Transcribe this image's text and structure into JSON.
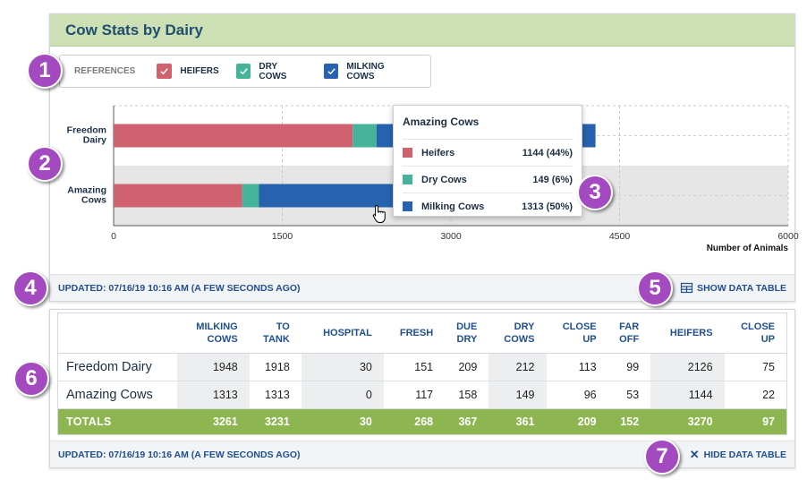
{
  "card": {
    "title": "Cow Stats by Dairy"
  },
  "legend": {
    "title": "REFERENCES",
    "items": [
      {
        "label": "HEIFERS",
        "color": "#d0626f"
      },
      {
        "label": "DRY COWS",
        "color": "#45b39a"
      },
      {
        "label": "MILKING COWS",
        "color": "#2662ad"
      }
    ]
  },
  "chart_data": {
    "type": "bar",
    "orientation": "horizontal",
    "stacked": true,
    "categories": [
      "Freedom Dairy",
      "Amazing Cows"
    ],
    "series": [
      {
        "name": "HEIFERS",
        "color": "#d0626f",
        "values": [
          2126,
          1144
        ]
      },
      {
        "name": "DRY COWS",
        "color": "#45b39a",
        "values": [
          212,
          149
        ]
      },
      {
        "name": "MILKING COWS",
        "color": "#2662ad",
        "values": [
          1948,
          1313
        ]
      }
    ],
    "xlim": [
      0,
      6000
    ],
    "xticks": [
      "0",
      "1500",
      "3000",
      "4500",
      "6000"
    ],
    "xlabel": "Number of Animals",
    "highlighted_category": "Amazing Cows",
    "grid": true
  },
  "tooltip": {
    "title": "Amazing Cows",
    "rows": [
      {
        "name": "Heifers",
        "value": "1144 (44%)",
        "color": "#d0626f"
      },
      {
        "name": "Dry Cows",
        "value": "149 (6%)",
        "color": "#45b39a"
      },
      {
        "name": "Milking Cows",
        "value": "1313 (50%)",
        "color": "#2662ad"
      }
    ]
  },
  "footer": {
    "updated": "UPDATED: 07/16/19 10:16 AM (A FEW SECONDS AGO)",
    "action": "SHOW DATA TABLE"
  },
  "table": {
    "headers": [
      [
        "",
        ""
      ],
      [
        "MILKING",
        "COWS"
      ],
      [
        "TO",
        "TANK"
      ],
      [
        "HOSPITAL",
        ""
      ],
      [
        "FRESH",
        ""
      ],
      [
        "DUE",
        "DRY"
      ],
      [
        "DRY",
        "COWS"
      ],
      [
        "CLOSE",
        "UP"
      ],
      [
        "FAR",
        "OFF"
      ],
      [
        "HEIFERS",
        ""
      ],
      [
        "CLOSE",
        "UP"
      ]
    ],
    "rows": [
      {
        "name": "Freedom Dairy",
        "cells": [
          "1948",
          "1918",
          "30",
          "151",
          "209",
          "212",
          "113",
          "99",
          "2126",
          "75"
        ]
      },
      {
        "name": "Amazing Cows",
        "cells": [
          "1313",
          "1313",
          "0",
          "117",
          "158",
          "149",
          "96",
          "53",
          "1144",
          "22"
        ]
      }
    ],
    "totals": {
      "name": "TOTALS",
      "cells": [
        "3261",
        "3231",
        "30",
        "268",
        "367",
        "361",
        "209",
        "152",
        "3270",
        "97"
      ]
    }
  },
  "footer2": {
    "updated": "UPDATED: 07/16/19 10:16 AM (A FEW SECONDS AGO)",
    "action": "HIDE DATA TABLE"
  },
  "badges": [
    "1",
    "2",
    "3",
    "4",
    "5",
    "6",
    "7"
  ],
  "colors": {
    "accent_purple": "#a44ac0",
    "header_green": "#cde0b5",
    "totals_green": "#8db650",
    "link_blue": "#1f4f8e"
  }
}
